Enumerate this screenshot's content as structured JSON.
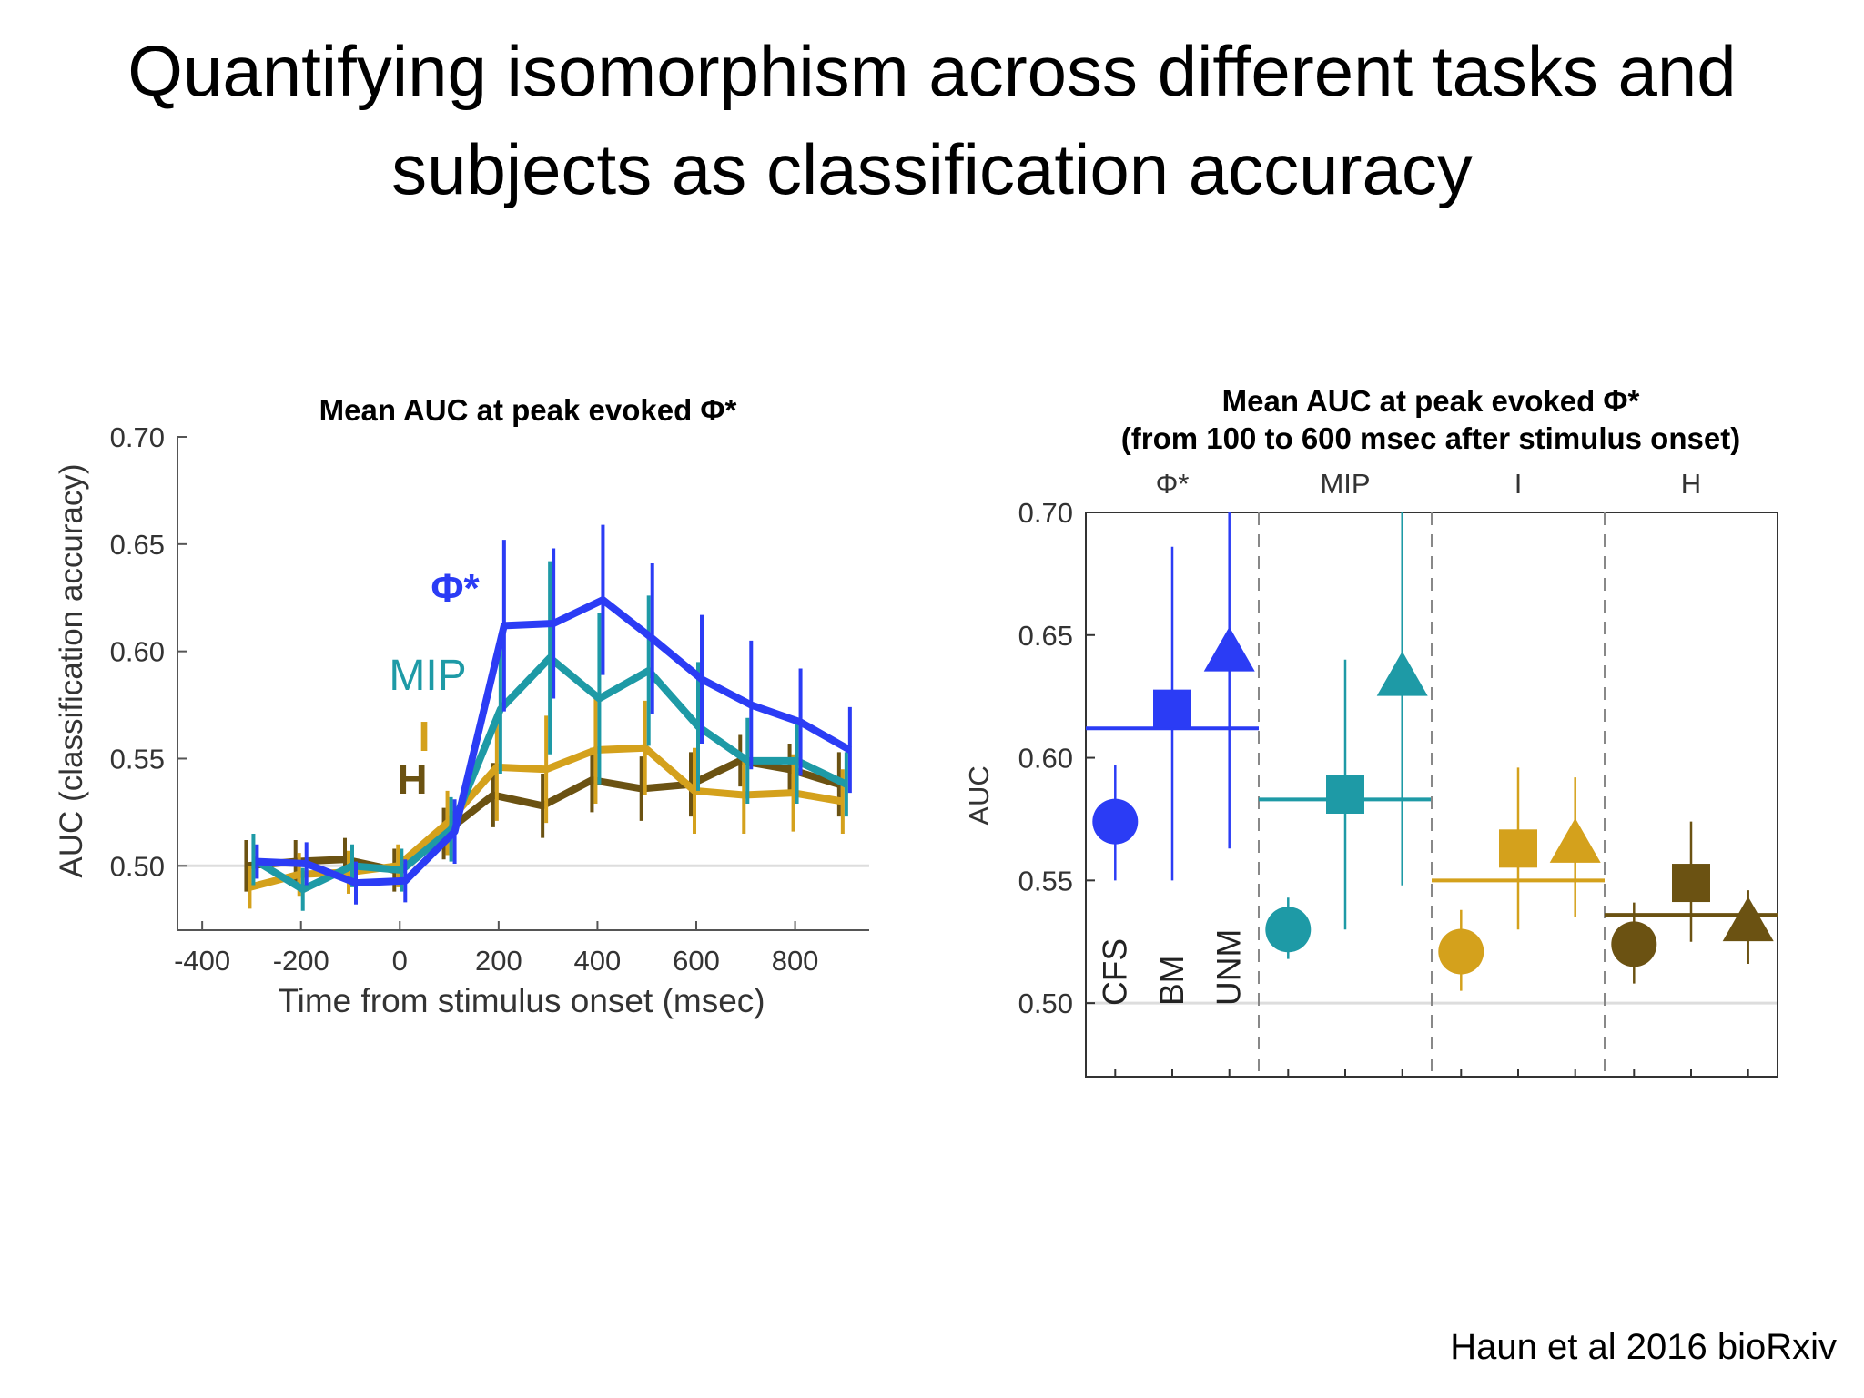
{
  "slide": {
    "title_line1": "Quantifying isomorphism across different tasks and",
    "title_line2": "subjects as classification accuracy",
    "citation": "Haun et al 2016 bioRxiv"
  },
  "chart_data": [
    {
      "type": "line",
      "title": "Mean AUC at peak evoked Φ*",
      "xlabel": "Time from stimulus onset (msec)",
      "ylabel": "AUC (classification accuracy)",
      "xlim": [
        -450,
        950
      ],
      "ylim": [
        0.47,
        0.7
      ],
      "xticks": [
        "-400",
        "-200",
        "0",
        "200",
        "400",
        "600",
        "800"
      ],
      "yticks": [
        "0.50",
        "0.55",
        "0.60",
        "0.65",
        "0.70"
      ],
      "reference_line": 0.5,
      "legend_placement": "inline labels near 200 msec",
      "x": [
        -300,
        -200,
        -100,
        0,
        100,
        200,
        300,
        400,
        500,
        600,
        700,
        800,
        900
      ],
      "series": [
        {
          "name": "H",
          "color": "#6b5212",
          "label_color": "#6b5212",
          "values": [
            0.5,
            0.502,
            0.503,
            0.498,
            0.515,
            0.533,
            0.528,
            0.54,
            0.536,
            0.538,
            0.549,
            0.545,
            0.538
          ],
          "errors": [
            0.012,
            0.01,
            0.01,
            0.01,
            0.012,
            0.015,
            0.015,
            0.015,
            0.015,
            0.015,
            0.012,
            0.012,
            0.015
          ]
        },
        {
          "name": "I",
          "color": "#d4a11c",
          "label_color": "#d4a11c",
          "values": [
            0.49,
            0.496,
            0.497,
            0.5,
            0.52,
            0.546,
            0.545,
            0.554,
            0.555,
            0.535,
            0.533,
            0.534,
            0.53
          ],
          "errors": [
            0.01,
            0.01,
            0.01,
            0.01,
            0.015,
            0.025,
            0.025,
            0.025,
            0.022,
            0.02,
            0.018,
            0.018,
            0.015
          ]
        },
        {
          "name": "MIP",
          "color": "#1e9aa6",
          "label_color": "#1e9aa6",
          "values": [
            0.503,
            0.489,
            0.5,
            0.498,
            0.517,
            0.573,
            0.597,
            0.578,
            0.591,
            0.565,
            0.549,
            0.549,
            0.538
          ],
          "errors": [
            0.012,
            0.01,
            0.01,
            0.01,
            0.015,
            0.03,
            0.045,
            0.04,
            0.035,
            0.03,
            0.02,
            0.02,
            0.015
          ]
        },
        {
          "name": "Φ*",
          "color": "#2b3cf5",
          "label_color": "#2b3cf5",
          "values": [
            0.502,
            0.501,
            0.492,
            0.493,
            0.516,
            0.612,
            0.613,
            0.624,
            0.606,
            0.587,
            0.575,
            0.567,
            0.554
          ],
          "errors": [
            0.008,
            0.01,
            0.01,
            0.01,
            0.015,
            0.04,
            0.035,
            0.035,
            0.035,
            0.03,
            0.03,
            0.025,
            0.02
          ]
        }
      ]
    },
    {
      "type": "scatter",
      "title": "Mean AUC at peak evoked Φ*",
      "subtitle": "(from 100 to 600 msec after stimulus onset)",
      "ylabel": "AUC",
      "ylim": [
        0.47,
        0.7
      ],
      "yticks": [
        "0.50",
        "0.55",
        "0.60",
        "0.65",
        "0.70"
      ],
      "reference_line": 0.5,
      "task_labels": [
        "CFS",
        "BM",
        "UNM"
      ],
      "task_markers": [
        "circle",
        "square",
        "triangle"
      ],
      "groups": [
        {
          "name": "Φ*",
          "color": "#2b3cf5",
          "mean": 0.612,
          "points": [
            {
              "task": "CFS",
              "value": 0.574,
              "low": 0.55,
              "high": 0.597
            },
            {
              "task": "BM",
              "value": 0.62,
              "low": 0.55,
              "high": 0.686
            },
            {
              "task": "UNM",
              "value": 0.643,
              "low": 0.563,
              "high": 0.7
            }
          ]
        },
        {
          "name": "MIP",
          "color": "#1e9aa6",
          "mean": 0.583,
          "points": [
            {
              "task": "CFS",
              "value": 0.53,
              "low": 0.518,
              "high": 0.543
            },
            {
              "task": "BM",
              "value": 0.585,
              "low": 0.53,
              "high": 0.64
            },
            {
              "task": "UNM",
              "value": 0.633,
              "low": 0.548,
              "high": 0.7
            }
          ]
        },
        {
          "name": "I",
          "color": "#d4a11c",
          "mean": 0.55,
          "points": [
            {
              "task": "CFS",
              "value": 0.521,
              "low": 0.505,
              "high": 0.538
            },
            {
              "task": "BM",
              "value": 0.563,
              "low": 0.53,
              "high": 0.596
            },
            {
              "task": "UNM",
              "value": 0.565,
              "low": 0.535,
              "high": 0.592
            }
          ]
        },
        {
          "name": "H",
          "color": "#6b5212",
          "mean": 0.536,
          "points": [
            {
              "task": "CFS",
              "value": 0.524,
              "low": 0.508,
              "high": 0.541
            },
            {
              "task": "BM",
              "value": 0.549,
              "low": 0.525,
              "high": 0.574
            },
            {
              "task": "UNM",
              "value": 0.533,
              "low": 0.516,
              "high": 0.546
            }
          ]
        }
      ]
    }
  ]
}
